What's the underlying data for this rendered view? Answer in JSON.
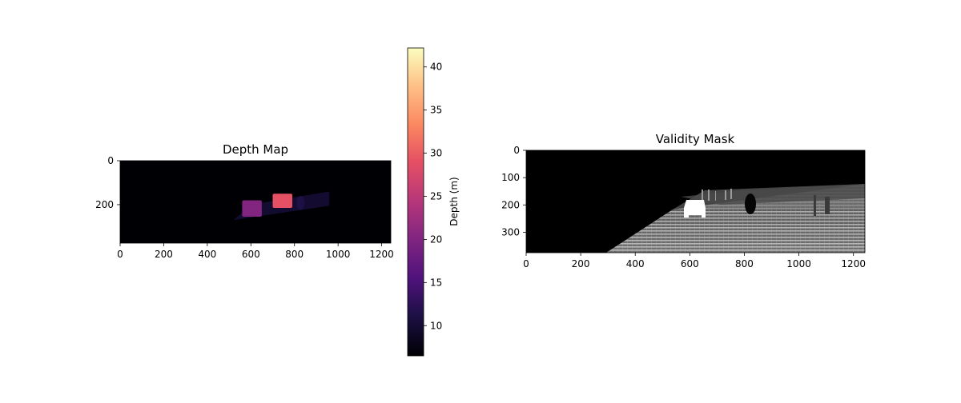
{
  "chart_data": [
    {
      "type": "heatmap",
      "title": "Depth Map",
      "xlabel": "",
      "ylabel": "",
      "xlim": [
        0,
        1242
      ],
      "ylim": [
        375,
        0
      ],
      "x_ticks": [
        0,
        200,
        400,
        600,
        800,
        1000,
        1200
      ],
      "y_ticks": [
        0,
        200
      ],
      "colormap": "magma",
      "colorbar": {
        "label": "Depth (m)",
        "range": [
          6.5,
          42.2
        ],
        "ticks": [
          10,
          15,
          20,
          25,
          30,
          35,
          40
        ]
      },
      "regions": [
        {
          "name": "car",
          "x": [
            560,
            650
          ],
          "y": [
            180,
            255
          ],
          "depth": 19
        },
        {
          "name": "pole-cluster",
          "x": [
            700,
            790
          ],
          "y": [
            150,
            215
          ],
          "depth": 27
        },
        {
          "name": "tree-trunk",
          "x": [
            805,
            850
          ],
          "y": [
            160,
            225
          ],
          "depth": 14
        },
        {
          "name": "sparse-ground",
          "x": [
            520,
            960
          ],
          "y": [
            140,
            270
          ],
          "depth": 12
        }
      ]
    },
    {
      "type": "heatmap",
      "title": "Validity Mask",
      "xlabel": "",
      "ylabel": "",
      "xlim": [
        0,
        1242
      ],
      "ylim": [
        375,
        0
      ],
      "x_ticks": [
        0,
        200,
        400,
        600,
        800,
        1000,
        1200
      ],
      "y_ticks": [
        0,
        100,
        200,
        300
      ],
      "colormap": "gray",
      "values": "binary (0 = invalid, 1 = valid)",
      "regions": [
        {
          "name": "valid-lidar-region",
          "value": 1
        },
        {
          "name": "car-blob",
          "x": [
            575,
            655
          ],
          "y": [
            180,
            245
          ],
          "value": 1
        },
        {
          "name": "tree-trunk-hole",
          "x": [
            805,
            850
          ],
          "y": [
            165,
            230
          ],
          "value": 0
        }
      ]
    }
  ]
}
